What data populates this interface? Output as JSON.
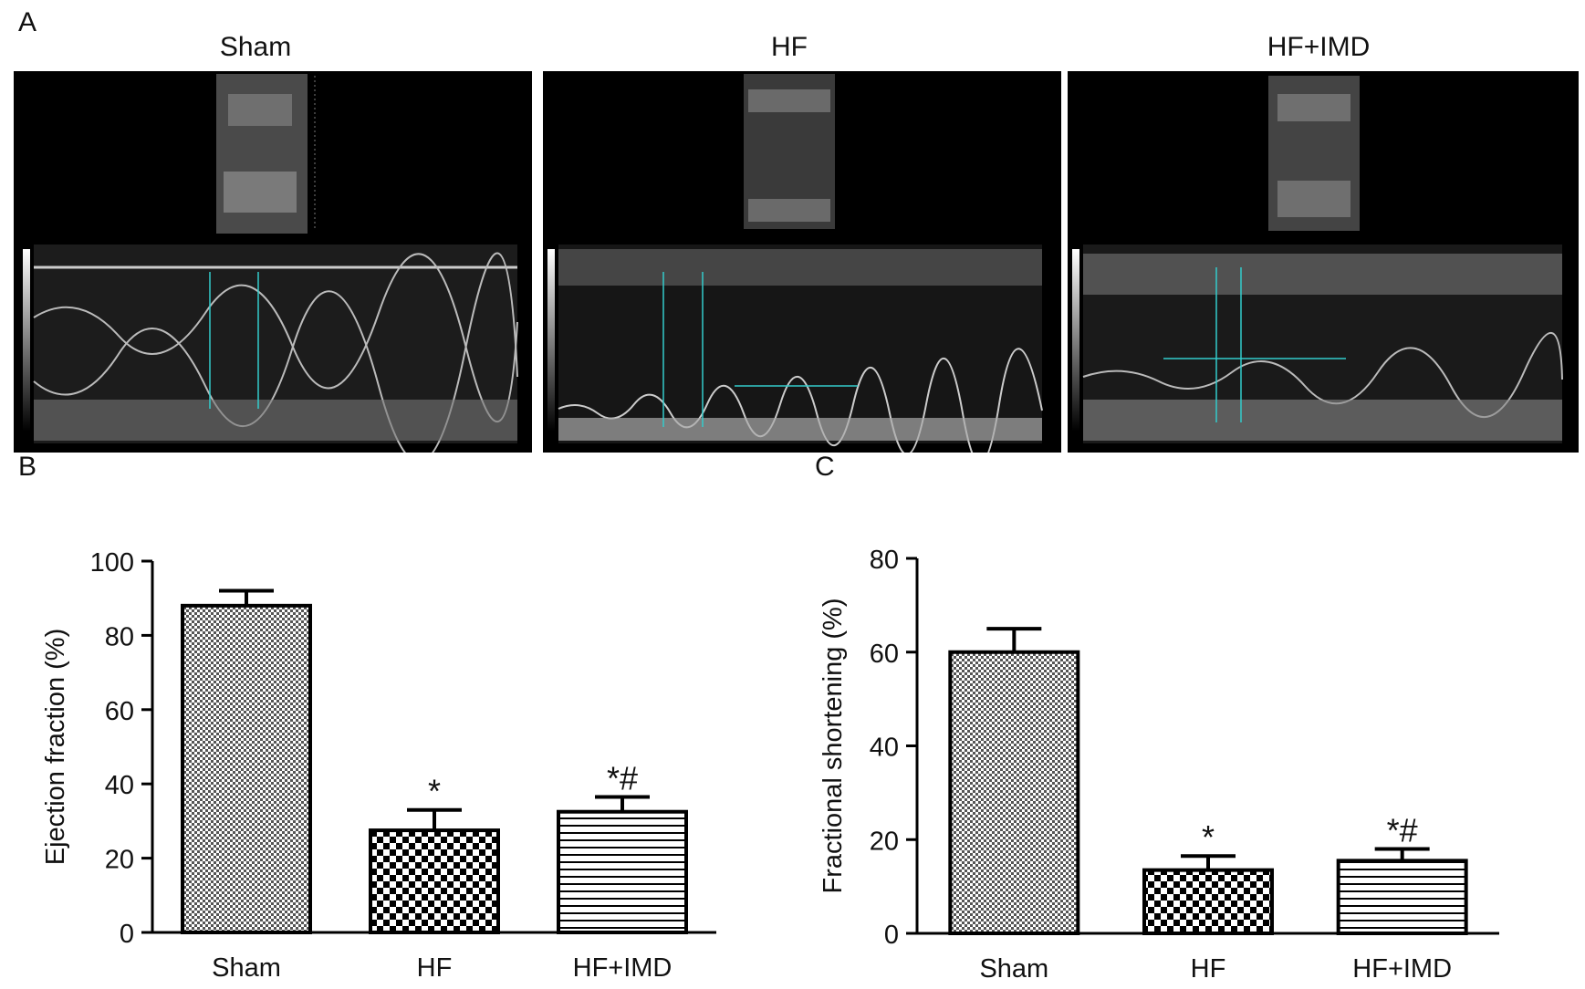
{
  "panels": {
    "a": "A",
    "b": "B",
    "c": "C"
  },
  "echo_titles": [
    "Sham",
    "HF",
    "HF+IMD"
  ],
  "chart_data": [
    {
      "type": "bar",
      "categories": [
        "Sham",
        "HF",
        "HF+IMD"
      ],
      "values": [
        88,
        27.5,
        32.5
      ],
      "errors": [
        4,
        5.5,
        4
      ],
      "significance": [
        "",
        "*",
        "*#"
      ],
      "ylabel": "Ejection fraction (%)",
      "ylim": [
        0,
        100
      ],
      "yticks": [
        0,
        20,
        40,
        60,
        80,
        100
      ],
      "patterns": [
        "fine-checker",
        "checker",
        "horizontal-lines"
      ]
    },
    {
      "type": "bar",
      "categories": [
        "Sham",
        "HF",
        "HF+IMD"
      ],
      "values": [
        60,
        13.5,
        15.5
      ],
      "errors": [
        5,
        3,
        2.5
      ],
      "significance": [
        "",
        "*",
        "*#"
      ],
      "ylabel": "Fractional shortening (%)",
      "ylim": [
        0,
        80
      ],
      "yticks": [
        0,
        20,
        40,
        60,
        80
      ],
      "patterns": [
        "fine-checker",
        "checker",
        "horizontal-lines"
      ]
    }
  ]
}
